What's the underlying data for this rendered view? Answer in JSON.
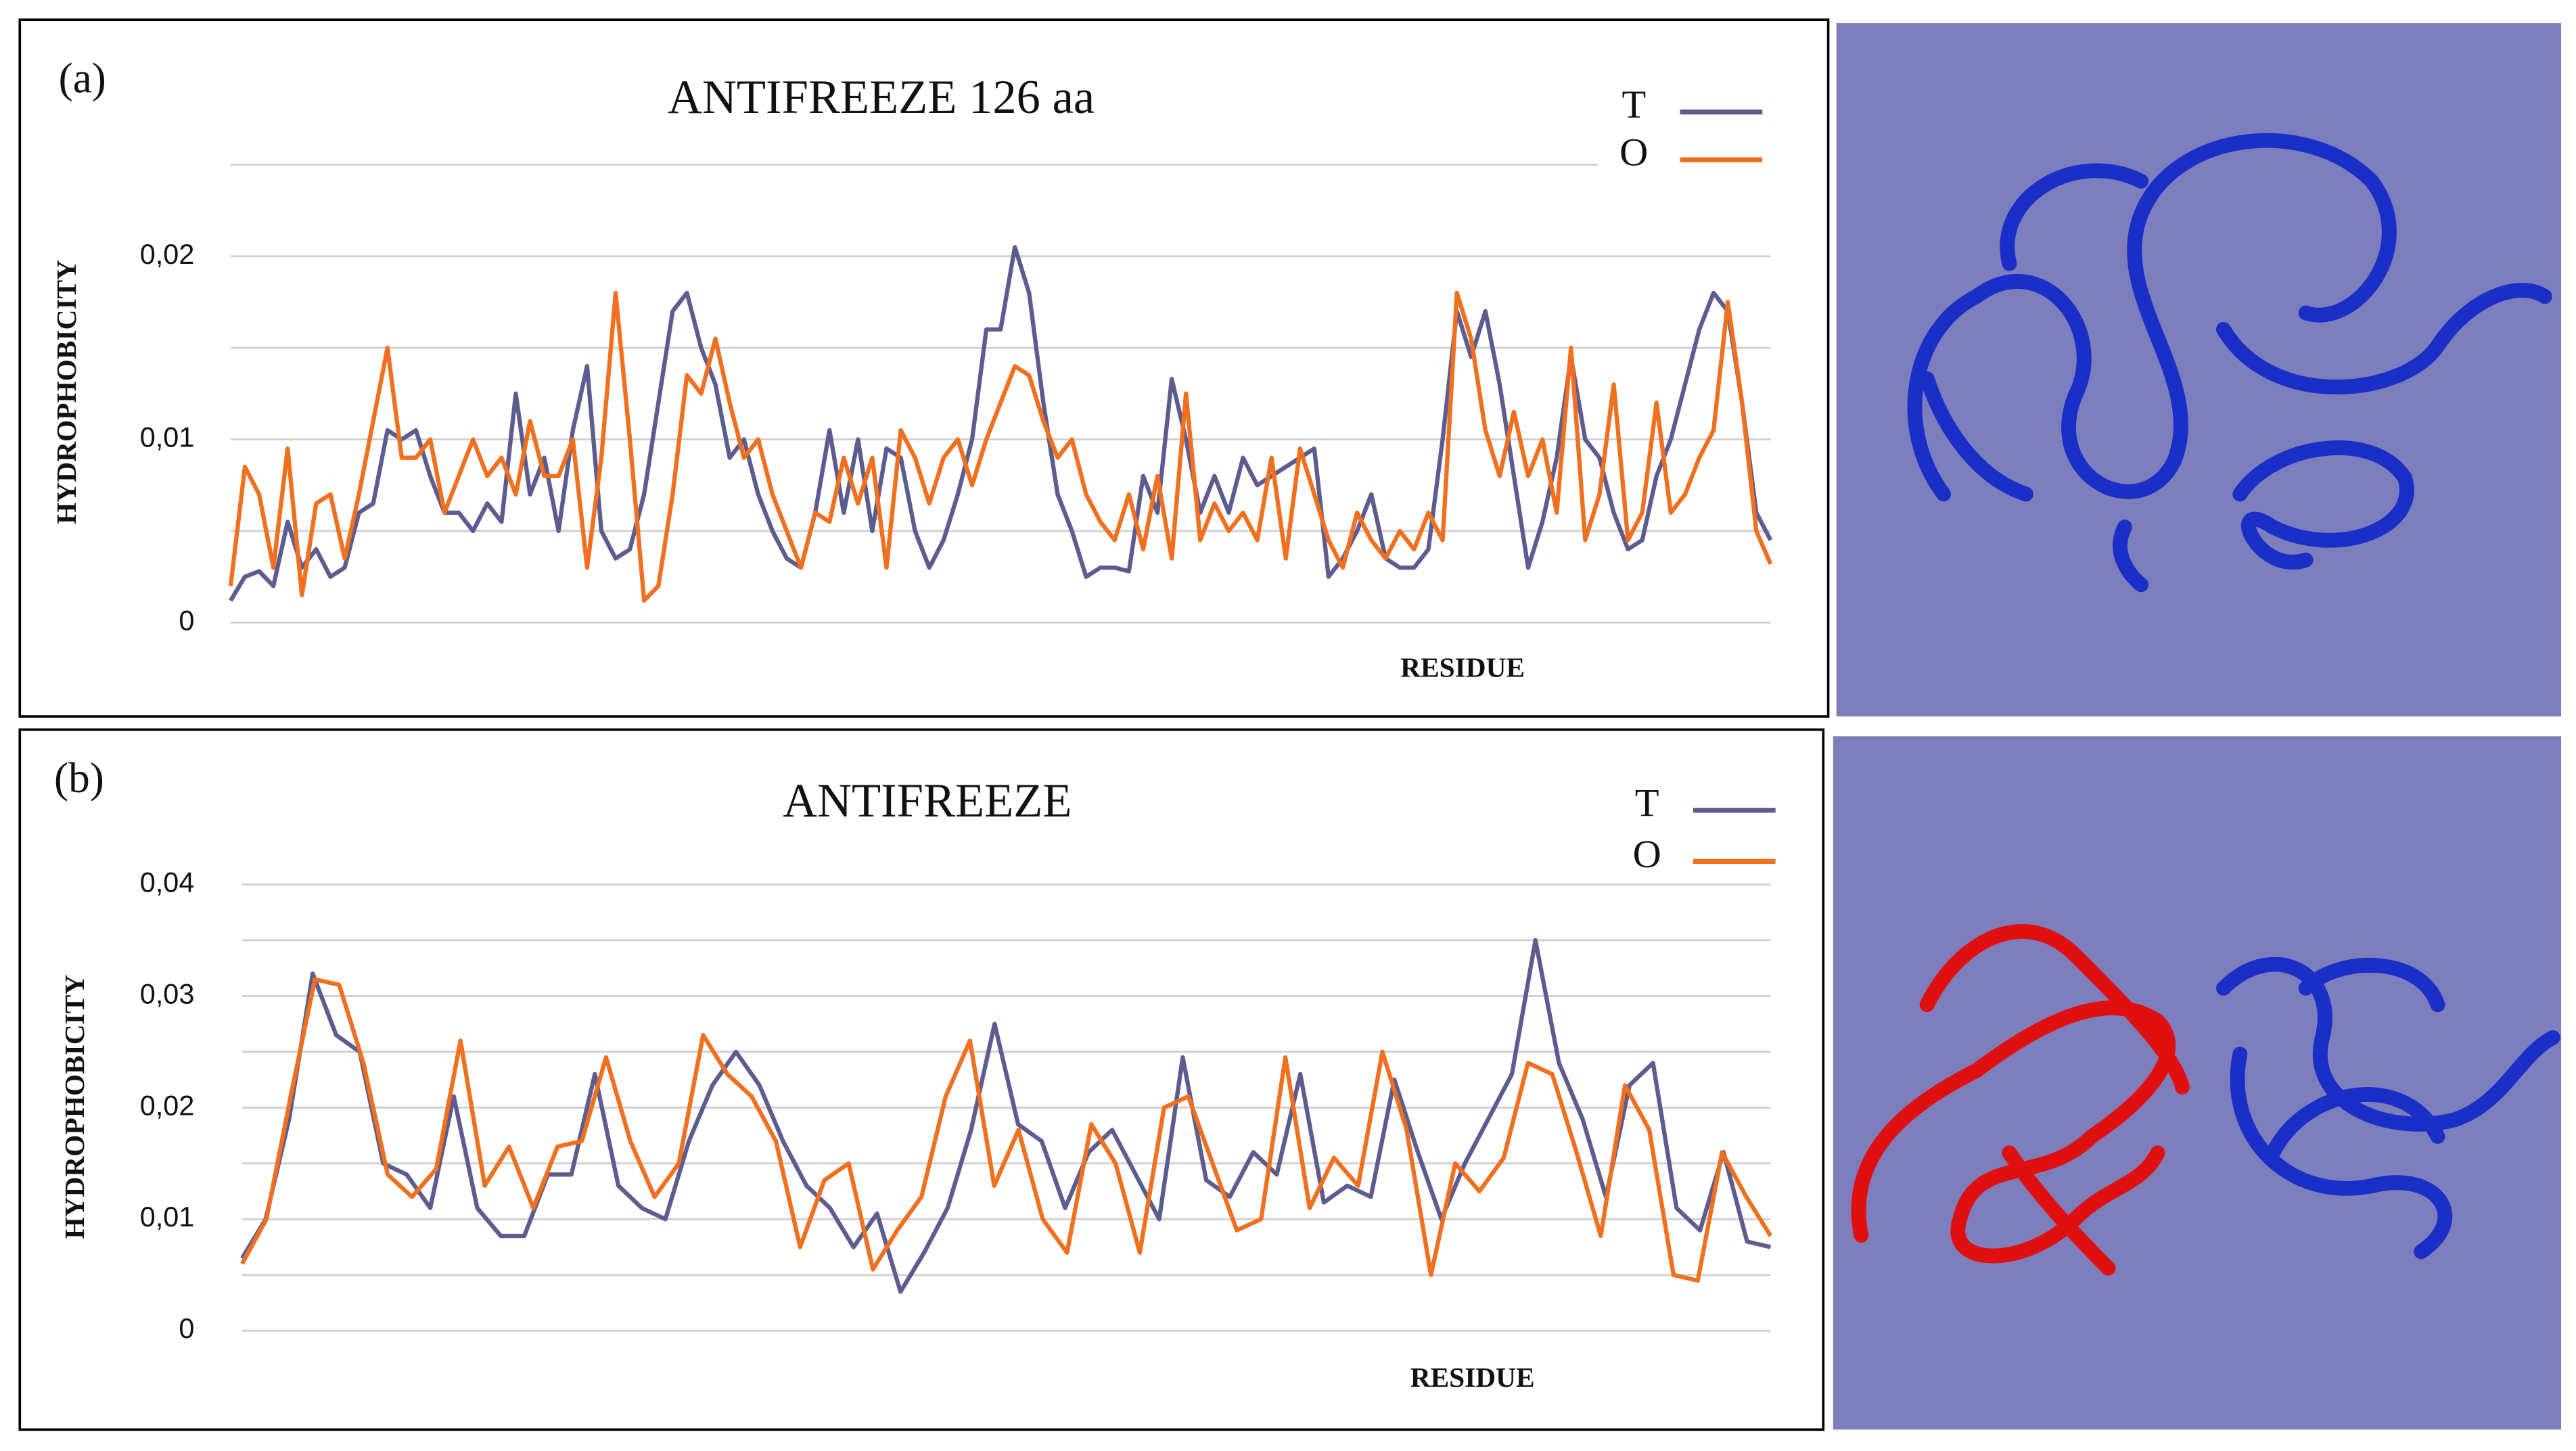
{
  "chart_data": [
    {
      "type": "line",
      "panel_label": "(a)",
      "title": "ANTIFREEZE 126 aa",
      "ylabel": "HYDROPHOBICITY",
      "xlabel": "RESIDUE",
      "ylim": [
        0,
        0.025
      ],
      "yticks": [
        0,
        {
          "value": 0.01,
          "label": "0,01"
        },
        {
          "value": 0.02,
          "label": "0,02"
        }
      ],
      "grid_values": [
        0,
        0.005,
        0.01,
        0.015,
        0.02,
        0.025
      ],
      "grid": true,
      "series": [
        {
          "name": "T",
          "color": "#5c5c90",
          "values": [
            0.0012,
            0.0025,
            0.0028,
            0.002,
            0.0055,
            0.003,
            0.004,
            0.0025,
            0.003,
            0.006,
            0.0065,
            0.0105,
            0.01,
            0.0105,
            0.008,
            0.006,
            0.006,
            0.005,
            0.0065,
            0.0055,
            0.0125,
            0.007,
            0.009,
            0.005,
            0.0105,
            0.014,
            0.005,
            0.0035,
            0.004,
            0.007,
            0.012,
            0.017,
            0.018,
            0.015,
            0.013,
            0.009,
            0.01,
            0.007,
            0.005,
            0.0035,
            0.003,
            0.006,
            0.0105,
            0.006,
            0.01,
            0.005,
            0.0095,
            0.009,
            0.005,
            0.003,
            0.0045,
            0.007,
            0.01,
            0.016,
            0.016,
            0.0205,
            0.018,
            0.012,
            0.007,
            0.005,
            0.0025,
            0.003,
            0.003,
            0.0028,
            0.008,
            0.006,
            0.0133,
            0.01,
            0.006,
            0.008,
            0.006,
            0.009,
            0.0075,
            0.008,
            0.0085,
            0.009,
            0.0095,
            0.0025,
            0.0035,
            0.005,
            0.007,
            0.0035,
            0.003,
            0.003,
            0.004,
            0.01,
            0.017,
            0.0145,
            0.017,
            0.013,
            0.008,
            0.003,
            0.0055,
            0.009,
            0.0145,
            0.01,
            0.009,
            0.006,
            0.004,
            0.0045,
            0.008,
            0.01,
            0.013,
            0.016,
            0.018,
            0.017,
            0.012,
            0.006,
            0.0045
          ]
        },
        {
          "name": "O",
          "color": "#f07020",
          "values": [
            0.002,
            0.0085,
            0.007,
            0.003,
            0.0095,
            0.0015,
            0.0065,
            0.007,
            0.0035,
            0.007,
            0.011,
            0.015,
            0.009,
            0.009,
            0.01,
            0.006,
            0.008,
            0.01,
            0.008,
            0.009,
            0.007,
            0.011,
            0.008,
            0.008,
            0.01,
            0.003,
            0.009,
            0.018,
            0.01,
            0.0012,
            0.002,
            0.007,
            0.0135,
            0.0125,
            0.0155,
            0.012,
            0.009,
            0.01,
            0.007,
            0.005,
            0.003,
            0.006,
            0.0055,
            0.009,
            0.0065,
            0.009,
            0.003,
            0.0105,
            0.009,
            0.0065,
            0.009,
            0.01,
            0.0075,
            0.01,
            0.012,
            0.014,
            0.0135,
            0.011,
            0.009,
            0.01,
            0.007,
            0.0055,
            0.0045,
            0.007,
            0.004,
            0.008,
            0.0035,
            0.0125,
            0.0045,
            0.0065,
            0.005,
            0.006,
            0.0045,
            0.009,
            0.0035,
            0.0095,
            0.007,
            0.0045,
            0.003,
            0.006,
            0.0045,
            0.0035,
            0.005,
            0.004,
            0.006,
            0.0045,
            0.018,
            0.0155,
            0.0105,
            0.008,
            0.0115,
            0.008,
            0.01,
            0.006,
            0.015,
            0.0045,
            0.007,
            0.013,
            0.0045,
            0.006,
            0.012,
            0.006,
            0.007,
            0.009,
            0.0105,
            0.0175,
            0.012,
            0.005,
            0.0032
          ]
        }
      ]
    },
    {
      "type": "line",
      "panel_label": "(b)",
      "title": "ANTIFREEZE",
      "ylabel": "HYDROPHOBICITY",
      "xlabel": "RESIDUE",
      "ylim": [
        0,
        0.04
      ],
      "yticks": [
        0,
        {
          "value": 0.01,
          "label": "0,01"
        },
        {
          "value": 0.02,
          "label": "0,02"
        },
        {
          "value": 0.03,
          "label": "0,03"
        },
        {
          "value": 0.04,
          "label": "0,04"
        }
      ],
      "grid_values": [
        0,
        0.005,
        0.01,
        0.015,
        0.02,
        0.025,
        0.03,
        0.035,
        0.04
      ],
      "grid": true,
      "series": [
        {
          "name": "T",
          "color": "#5c5c90",
          "values": [
            0.0065,
            0.01,
            0.019,
            0.032,
            0.0265,
            0.025,
            0.015,
            0.014,
            0.011,
            0.021,
            0.011,
            0.0085,
            0.0085,
            0.014,
            0.014,
            0.023,
            0.013,
            0.011,
            0.01,
            0.017,
            0.022,
            0.025,
            0.022,
            0.017,
            0.013,
            0.011,
            0.0075,
            0.0105,
            0.0035,
            0.007,
            0.011,
            0.018,
            0.0275,
            0.0185,
            0.017,
            0.011,
            0.016,
            0.018,
            0.014,
            0.01,
            0.0245,
            0.0135,
            0.012,
            0.016,
            0.014,
            0.023,
            0.0115,
            0.013,
            0.012,
            0.0225,
            0.016,
            0.01,
            0.015,
            0.019,
            0.023,
            0.035,
            0.024,
            0.019,
            0.012,
            0.022,
            0.024,
            0.011,
            0.009,
            0.016,
            0.008,
            0.0075
          ]
        },
        {
          "name": "O",
          "color": "#f07020",
          "values": [
            0.006,
            0.01,
            0.021,
            0.0315,
            0.031,
            0.024,
            0.014,
            0.012,
            0.0145,
            0.026,
            0.013,
            0.0165,
            0.011,
            0.0165,
            0.017,
            0.0245,
            0.017,
            0.012,
            0.015,
            0.0265,
            0.023,
            0.021,
            0.017,
            0.0075,
            0.0135,
            0.015,
            0.0055,
            0.009,
            0.012,
            0.021,
            0.026,
            0.013,
            0.018,
            0.01,
            0.007,
            0.0185,
            0.015,
            0.007,
            0.02,
            0.021,
            0.015,
            0.009,
            0.01,
            0.0245,
            0.011,
            0.0155,
            0.013,
            0.025,
            0.018,
            0.005,
            0.015,
            0.0125,
            0.0155,
            0.024,
            0.023,
            0.016,
            0.0085,
            0.022,
            0.018,
            0.005,
            0.0045,
            0.016,
            0.012,
            0.0085
          ]
        }
      ]
    }
  ]
}
